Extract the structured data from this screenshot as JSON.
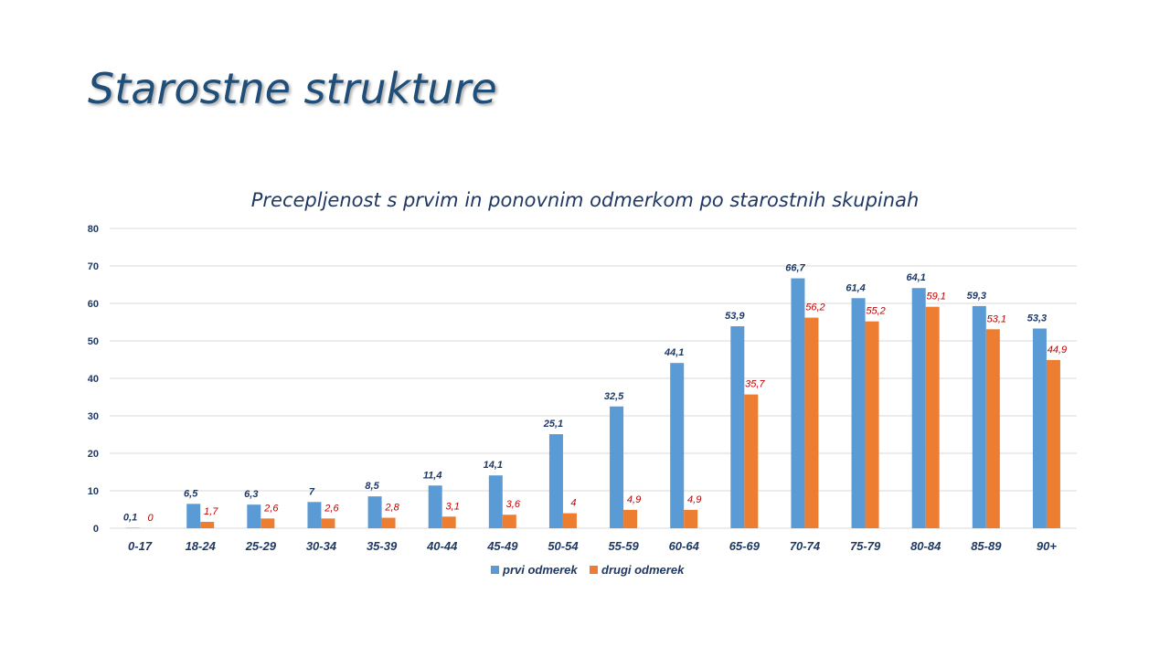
{
  "slide": {
    "title": "Starostne strukture"
  },
  "colors": {
    "series1": "#5b9bd5",
    "series2": "#ed7d31",
    "label1": "#1f3864",
    "label2": "#c00000",
    "grid": "#d9d9d9"
  },
  "chart_data": {
    "type": "bar",
    "title": "Precepljenost s prvim in ponovnim odmerkom po starostnih skupinah",
    "xlabel": "",
    "ylabel": "",
    "ylim": [
      0,
      80
    ],
    "yticks": [
      0,
      10,
      20,
      30,
      40,
      50,
      60,
      70,
      80
    ],
    "grid": true,
    "legend": "bottom",
    "categories": [
      "0-17",
      "18-24",
      "25-29",
      "30-34",
      "35-39",
      "40-44",
      "45-49",
      "50-54",
      "55-59",
      "60-64",
      "65-69",
      "70-74",
      "75-79",
      "80-84",
      "85-89",
      "90+"
    ],
    "series": [
      {
        "name": "prvi odmerek",
        "values": [
          0.1,
          6.5,
          6.3,
          7,
          8.5,
          11.4,
          14.1,
          25.1,
          32.5,
          44.1,
          53.9,
          66.7,
          61.4,
          64.1,
          59.3,
          53.3
        ],
        "labels": [
          "0,1",
          "6,5",
          "6,3",
          "7",
          "8,5",
          "11,4",
          "14,1",
          "25,1",
          "32,5",
          "44,1",
          "53,9",
          "66,7",
          "61,4",
          "64,1",
          "59,3",
          "53,3"
        ]
      },
      {
        "name": "drugi odmerek",
        "values": [
          0,
          1.7,
          2.6,
          2.6,
          2.8,
          3.1,
          3.6,
          4,
          4.9,
          4.9,
          35.7,
          56.2,
          55.2,
          59.1,
          53.1,
          44.9
        ],
        "labels": [
          "0",
          "1,7",
          "2,6",
          "2,6",
          "2,8",
          "3,1",
          "3,6",
          "4",
          "4,9",
          "4,9",
          "35,7",
          "56,2",
          "55,2",
          "59,1",
          "53,1",
          "44,9"
        ]
      }
    ]
  }
}
